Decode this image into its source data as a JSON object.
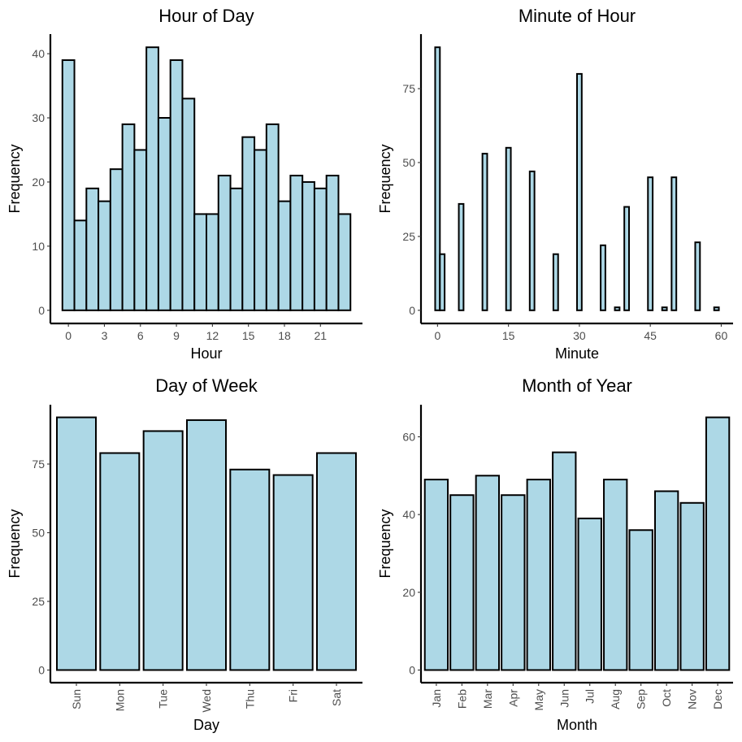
{
  "colors": {
    "bar_fill": "#add8e6",
    "bar_stroke": "#000000",
    "tick_text": "#4d4d4d"
  },
  "chart_data": [
    {
      "type": "bar",
      "title": "Hour of Day",
      "xlabel": "Hour",
      "ylabel": "Frequency",
      "x_numeric": true,
      "bin_width": 1,
      "x": [
        0,
        1,
        2,
        3,
        4,
        5,
        6,
        7,
        8,
        9,
        10,
        11,
        12,
        13,
        14,
        15,
        16,
        17,
        18,
        19,
        20,
        21,
        22,
        23
      ],
      "values": [
        39,
        14,
        19,
        17,
        22,
        29,
        25,
        41,
        30,
        39,
        33,
        15,
        15,
        21,
        19,
        27,
        25,
        29,
        17,
        21,
        20,
        19,
        21,
        15
      ],
      "xlim": [
        -1.5,
        24.5
      ],
      "ylim": [
        -2.05,
        43.05
      ],
      "xticks": [
        0,
        3,
        6,
        9,
        12,
        15,
        18,
        21
      ],
      "yticks": [
        0,
        10,
        20,
        30,
        40
      ],
      "xtick_rotate": false,
      "grid": false
    },
    {
      "type": "bar",
      "title": "Minute of Hour",
      "xlabel": "Minute",
      "ylabel": "Frequency",
      "x_numeric": true,
      "bin_width": 1,
      "x": [
        0,
        1,
        5,
        10,
        15,
        20,
        25,
        30,
        35,
        38,
        40,
        45,
        48,
        50,
        55,
        59
      ],
      "values": [
        89,
        19,
        36,
        53,
        55,
        47,
        19,
        80,
        22,
        1,
        35,
        45,
        1,
        45,
        23,
        1
      ],
      "xlim": [
        -3.5,
        62.5
      ],
      "ylim": [
        -4.45,
        93.45
      ],
      "xticks": [
        0,
        15,
        30,
        45,
        60
      ],
      "yticks": [
        0,
        25,
        50,
        75
      ],
      "xtick_rotate": false,
      "grid": false
    },
    {
      "type": "bar",
      "title": "Day of Week",
      "xlabel": "Day",
      "ylabel": "Frequency",
      "x_numeric": false,
      "categories": [
        "Sun",
        "Mon",
        "Tue",
        "Wed",
        "Thu",
        "Fri",
        "Sat"
      ],
      "values": [
        92,
        79,
        87,
        91,
        73,
        71,
        79
      ],
      "ylim": [
        -4.6,
        96.6
      ],
      "yticks": [
        0,
        25,
        50,
        75
      ],
      "xtick_rotate": true,
      "grid": false
    },
    {
      "type": "bar",
      "title": "Month of Year",
      "xlabel": "Month",
      "ylabel": "Frequency",
      "x_numeric": false,
      "categories": [
        "Jan",
        "Feb",
        "Mar",
        "Apr",
        "May",
        "Jun",
        "Jul",
        "Aug",
        "Sep",
        "Oct",
        "Nov",
        "Dec"
      ],
      "values": [
        49,
        45,
        50,
        45,
        49,
        56,
        39,
        49,
        36,
        46,
        43,
        65
      ],
      "ylim": [
        -3.25,
        68.25
      ],
      "yticks": [
        0,
        20,
        40,
        60
      ],
      "xtick_rotate": true,
      "grid": false
    }
  ]
}
